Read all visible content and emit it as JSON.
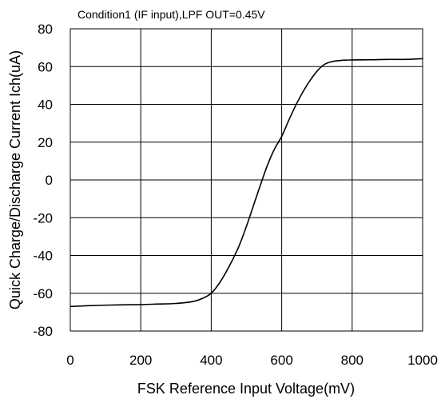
{
  "chart_data": {
    "type": "line",
    "title": "Condition1 (IF input),LPF OUT=0.45V",
    "xlabel": "FSK Reference Input Voltage(mV)",
    "ylabel": "Quick Charge/Discharge Current Ich(uA)",
    "xlim": [
      0,
      1000
    ],
    "ylim": [
      -80,
      80
    ],
    "x_ticks": [
      0,
      200,
      400,
      600,
      800,
      1000
    ],
    "y_ticks": [
      80,
      60,
      40,
      20,
      0,
      -20,
      -40,
      -60,
      -80
    ],
    "x_tick_labels": [
      "0",
      "200",
      "400",
      "600",
      "800",
      "1000"
    ],
    "y_tick_labels": [
      "80",
      "60",
      "40",
      "20",
      "0",
      "-20",
      "-40",
      "-60",
      "-80"
    ],
    "grid": true,
    "legend": "none",
    "colors": {
      "line": "#000000",
      "grid": "#000000",
      "background": "#ffffff"
    },
    "series": [
      {
        "x": [
          0,
          50,
          100,
          150,
          200,
          250,
          300,
          350,
          380,
          400,
          420,
          440,
          460,
          480,
          500,
          520,
          540,
          560,
          580,
          600,
          620,
          640,
          660,
          680,
          700,
          720,
          740,
          760,
          780,
          800,
          850,
          900,
          950,
          1000
        ],
        "y": [
          -67,
          -66.6,
          -66.3,
          -66.1,
          -66,
          -65.7,
          -65.4,
          -64.3,
          -62.3,
          -60,
          -55.5,
          -49.5,
          -42.5,
          -34.5,
          -24.5,
          -13.5,
          -2.5,
          8,
          16.5,
          23,
          31.5,
          39.5,
          46.5,
          52.5,
          57.5,
          61,
          62.5,
          63.1,
          63.4,
          63.5,
          63.6,
          63.8,
          63.8,
          64.2
        ]
      }
    ]
  }
}
